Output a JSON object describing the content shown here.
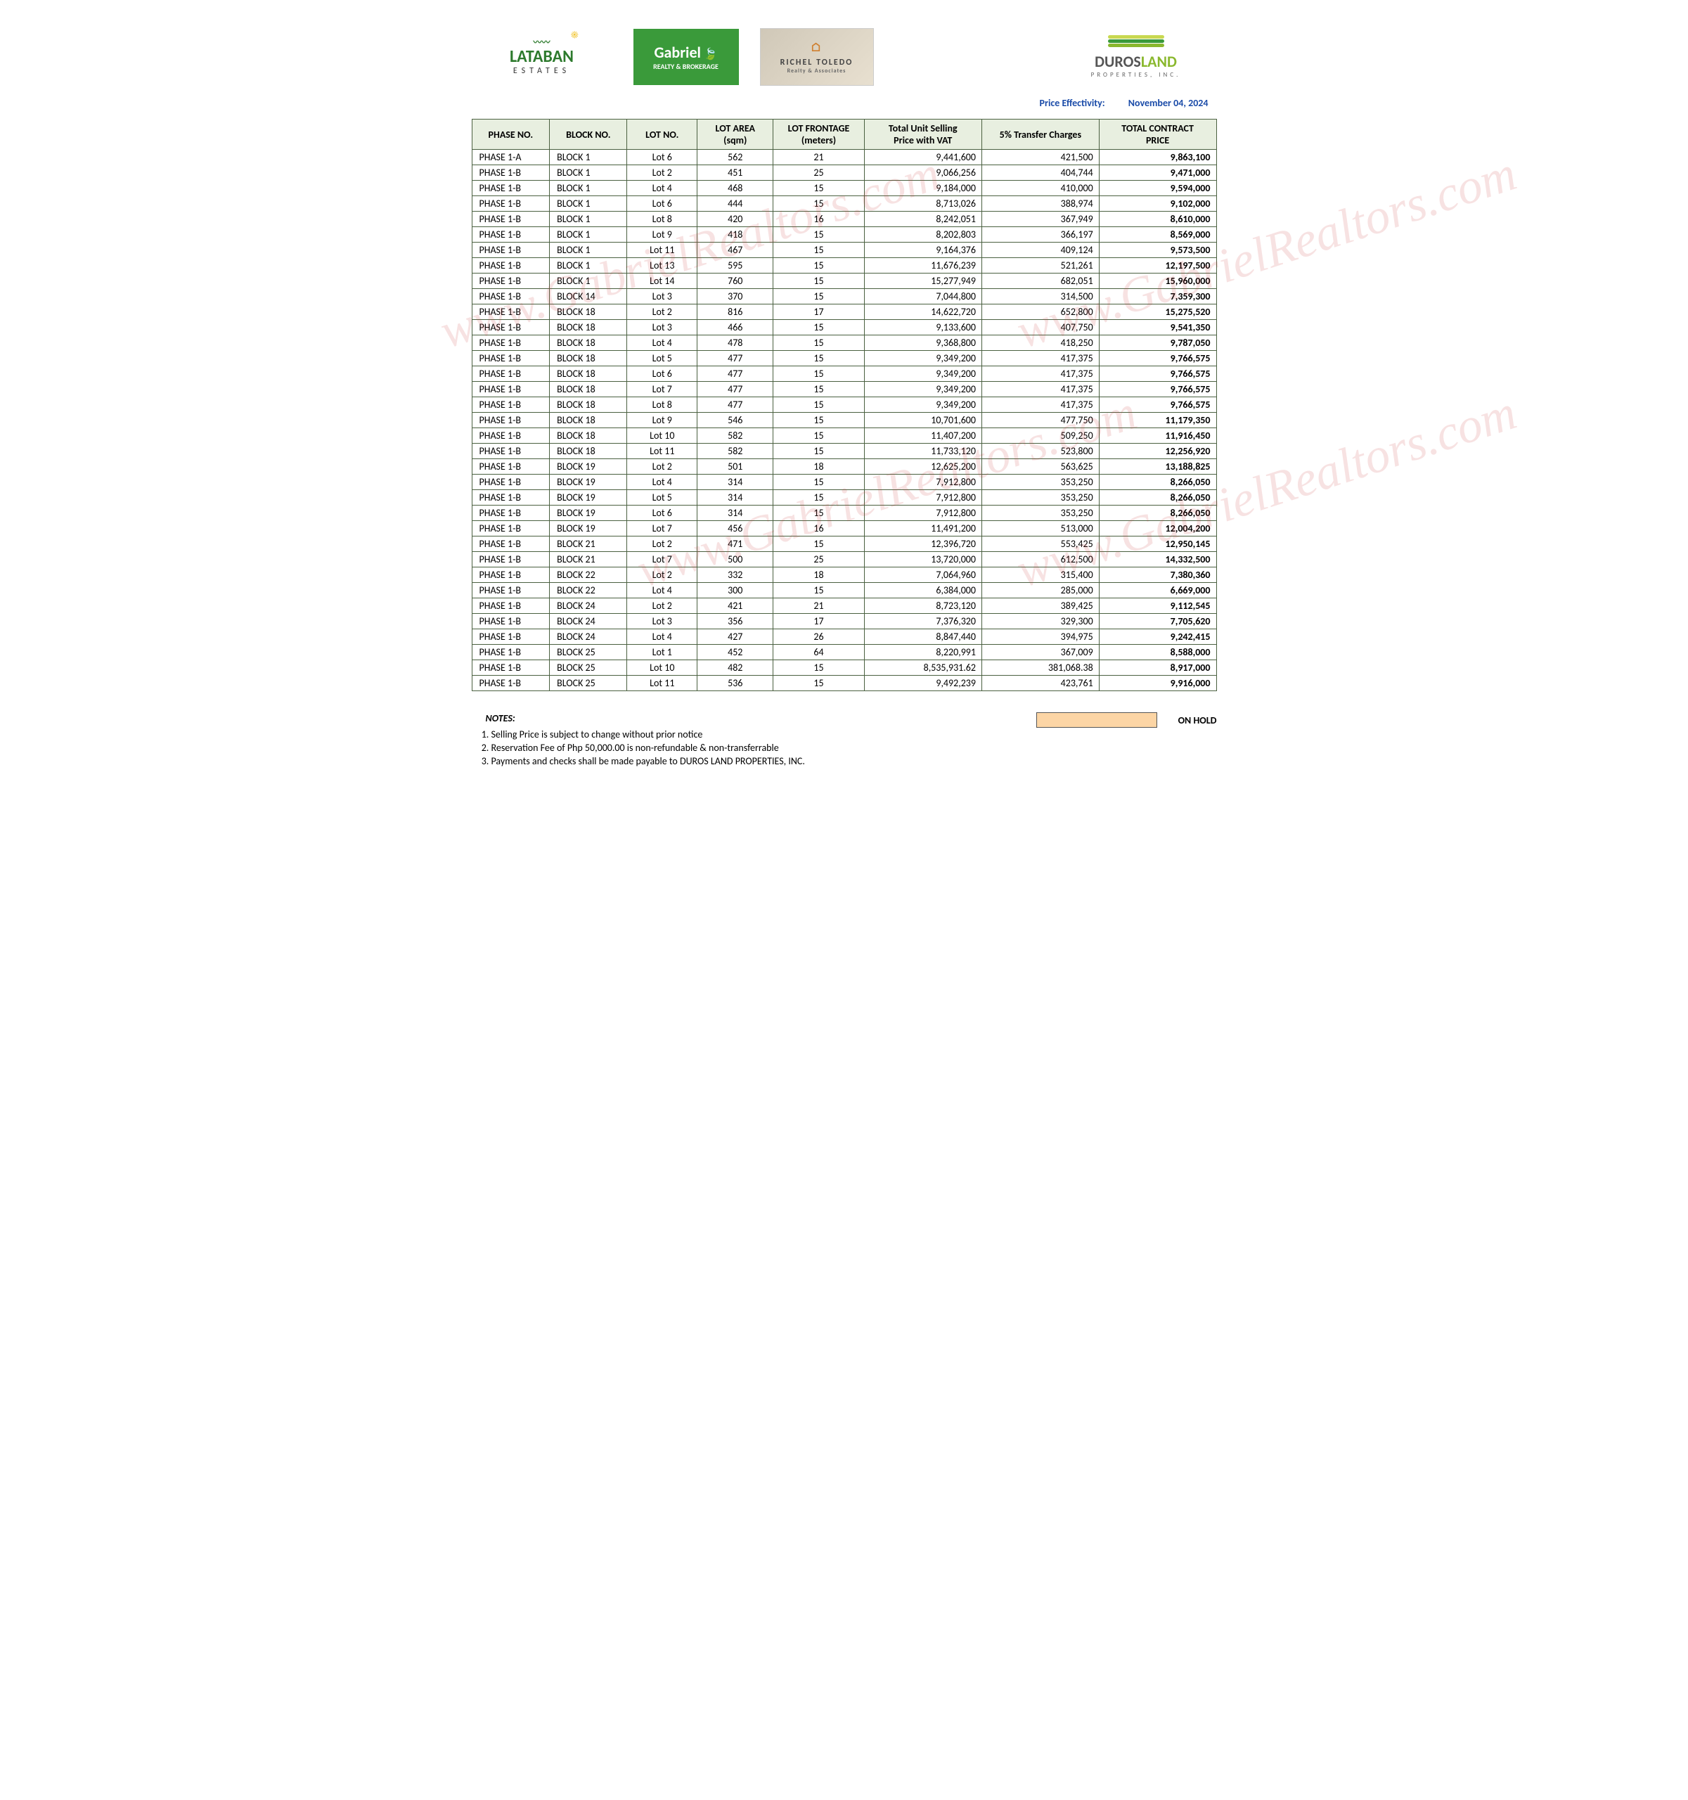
{
  "logos": {
    "lataban": {
      "name": "LATABAN",
      "sub": "ESTATES"
    },
    "gabriel": {
      "name": "Gabriel",
      "sub": "REALTY & BROKERAGE"
    },
    "richel": {
      "name": "RICHEL TOLEDO",
      "sub": "Realty & Associates"
    },
    "duros": {
      "name_a": "DUROS",
      "name_b": "LAND",
      "sub": "PROPERTIES, INC."
    }
  },
  "effectivity": {
    "label": "Price Effectivity:",
    "date": "November 04, 2024"
  },
  "columns": [
    "PHASE NO.",
    "BLOCK NO.",
    "LOT NO.",
    "LOT AREA (sqm)",
    "LOT FRONTAGE (meters)",
    "Total Unit Selling Price with VAT",
    "5% Transfer Charges",
    "TOTAL CONTRACT PRICE"
  ],
  "rows": [
    [
      "PHASE 1-A",
      "BLOCK 1",
      "Lot 6",
      "562",
      "21",
      "9,441,600",
      "421,500",
      "9,863,100"
    ],
    [
      "PHASE 1-B",
      "BLOCK 1",
      "Lot 2",
      "451",
      "25",
      "9,066,256",
      "404,744",
      "9,471,000"
    ],
    [
      "PHASE 1-B",
      "BLOCK 1",
      "Lot 4",
      "468",
      "15",
      "9,184,000",
      "410,000",
      "9,594,000"
    ],
    [
      "PHASE 1-B",
      "BLOCK 1",
      "Lot 6",
      "444",
      "15",
      "8,713,026",
      "388,974",
      "9,102,000"
    ],
    [
      "PHASE 1-B",
      "BLOCK 1",
      "Lot 8",
      "420",
      "16",
      "8,242,051",
      "367,949",
      "8,610,000"
    ],
    [
      "PHASE 1-B",
      "BLOCK 1",
      "Lot 9",
      "418",
      "15",
      "8,202,803",
      "366,197",
      "8,569,000"
    ],
    [
      "PHASE 1-B",
      "BLOCK 1",
      "Lot 11",
      "467",
      "15",
      "9,164,376",
      "409,124",
      "9,573,500"
    ],
    [
      "PHASE 1-B",
      "BLOCK 1",
      "Lot 13",
      "595",
      "15",
      "11,676,239",
      "521,261",
      "12,197,500"
    ],
    [
      "PHASE 1-B",
      "BLOCK 1",
      "Lot 14",
      "760",
      "15",
      "15,277,949",
      "682,051",
      "15,960,000"
    ],
    [
      "PHASE 1-B",
      "BLOCK 14",
      "Lot 3",
      "370",
      "15",
      "7,044,800",
      "314,500",
      "7,359,300"
    ],
    [
      "PHASE 1-B",
      "BLOCK 18",
      "Lot 2",
      "816",
      "17",
      "14,622,720",
      "652,800",
      "15,275,520"
    ],
    [
      "PHASE 1-B",
      "BLOCK 18",
      "Lot 3",
      "466",
      "15",
      "9,133,600",
      "407,750",
      "9,541,350"
    ],
    [
      "PHASE 1-B",
      "BLOCK 18",
      "Lot 4",
      "478",
      "15",
      "9,368,800",
      "418,250",
      "9,787,050"
    ],
    [
      "PHASE 1-B",
      "BLOCK 18",
      "Lot 5",
      "477",
      "15",
      "9,349,200",
      "417,375",
      "9,766,575"
    ],
    [
      "PHASE 1-B",
      "BLOCK 18",
      "Lot 6",
      "477",
      "15",
      "9,349,200",
      "417,375",
      "9,766,575"
    ],
    [
      "PHASE 1-B",
      "BLOCK 18",
      "Lot 7",
      "477",
      "15",
      "9,349,200",
      "417,375",
      "9,766,575"
    ],
    [
      "PHASE 1-B",
      "BLOCK 18",
      "Lot 8",
      "477",
      "15",
      "9,349,200",
      "417,375",
      "9,766,575"
    ],
    [
      "PHASE 1-B",
      "BLOCK 18",
      "Lot 9",
      "546",
      "15",
      "10,701,600",
      "477,750",
      "11,179,350"
    ],
    [
      "PHASE 1-B",
      "BLOCK 18",
      "Lot 10",
      "582",
      "15",
      "11,407,200",
      "509,250",
      "11,916,450"
    ],
    [
      "PHASE 1-B",
      "BLOCK 18",
      "Lot 11",
      "582",
      "15",
      "11,733,120",
      "523,800",
      "12,256,920"
    ],
    [
      "PHASE 1-B",
      "BLOCK 19",
      "Lot 2",
      "501",
      "18",
      "12,625,200",
      "563,625",
      "13,188,825"
    ],
    [
      "PHASE 1-B",
      "BLOCK 19",
      "Lot 4",
      "314",
      "15",
      "7,912,800",
      "353,250",
      "8,266,050"
    ],
    [
      "PHASE 1-B",
      "BLOCK 19",
      "Lot 5",
      "314",
      "15",
      "7,912,800",
      "353,250",
      "8,266,050"
    ],
    [
      "PHASE 1-B",
      "BLOCK 19",
      "Lot 6",
      "314",
      "15",
      "7,912,800",
      "353,250",
      "8,266,050"
    ],
    [
      "PHASE 1-B",
      "BLOCK 19",
      "Lot 7",
      "456",
      "16",
      "11,491,200",
      "513,000",
      "12,004,200"
    ],
    [
      "PHASE 1-B",
      "BLOCK 21",
      "Lot 2",
      "471",
      "15",
      "12,396,720",
      "553,425",
      "12,950,145"
    ],
    [
      "PHASE 1-B",
      "BLOCK 21",
      "Lot 7",
      "500",
      "25",
      "13,720,000",
      "612,500",
      "14,332,500"
    ],
    [
      "PHASE 1-B",
      "BLOCK 22",
      "Lot 2",
      "332",
      "18",
      "7,064,960",
      "315,400",
      "7,380,360"
    ],
    [
      "PHASE 1-B",
      "BLOCK 22",
      "Lot 4",
      "300",
      "15",
      "6,384,000",
      "285,000",
      "6,669,000"
    ],
    [
      "PHASE 1-B",
      "BLOCK 24",
      "Lot 2",
      "421",
      "21",
      "8,723,120",
      "389,425",
      "9,112,545"
    ],
    [
      "PHASE 1-B",
      "BLOCK 24",
      "Lot 3",
      "356",
      "17",
      "7,376,320",
      "329,300",
      "7,705,620"
    ],
    [
      "PHASE 1-B",
      "BLOCK 24",
      "Lot 4",
      "427",
      "26",
      "8,847,440",
      "394,975",
      "9,242,415"
    ],
    [
      "PHASE 1-B",
      "BLOCK 25",
      "Lot 1",
      "452",
      "64",
      "8,220,991",
      "367,009",
      "8,588,000"
    ],
    [
      "PHASE 1-B",
      "BLOCK 25",
      "Lot 10",
      "482",
      "15",
      "8,535,931.62",
      "381,068.38",
      "8,917,000"
    ],
    [
      "PHASE 1-B",
      "BLOCK 25",
      "Lot 11",
      "536",
      "15",
      "9,492,239",
      "423,761",
      "9,916,000"
    ]
  ],
  "legend": {
    "label": "ON HOLD",
    "color": "#fcd5a5"
  },
  "notes": {
    "title": "NOTES:",
    "items": [
      "Selling Price is subject to change without prior notice",
      "Reservation Fee of Php 50,000.00 is non-refundable & non-transferrable",
      "Payments and checks shall be made payable to DUROS LAND PROPERTIES, INC."
    ]
  },
  "watermark": "www.GabrielRealtors.com"
}
